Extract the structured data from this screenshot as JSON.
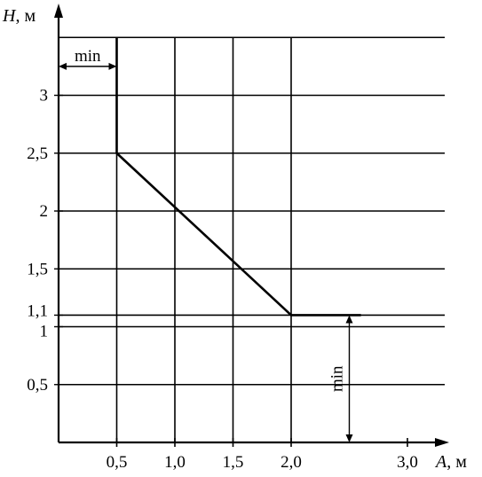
{
  "chart_data": {
    "type": "line",
    "xlabel_var": "A",
    "xlabel_unit": ", м",
    "ylabel_var": "H",
    "ylabel_unit": ", м",
    "xlim": [
      0,
      3.3
    ],
    "ylim": [
      0,
      3.5
    ],
    "x_ticks": [
      {
        "value": 0.5,
        "label": "0,5"
      },
      {
        "value": 1.0,
        "label": "1,0"
      },
      {
        "value": 1.5,
        "label": "1,5"
      },
      {
        "value": 2.0,
        "label": "2,0"
      },
      {
        "value": 3.0,
        "label": "3,0"
      }
    ],
    "y_ticks": [
      {
        "value": 0.5,
        "label": "0,5"
      },
      {
        "value": 1.0,
        "label": "1"
      },
      {
        "value": 1.1,
        "label": "1,1"
      },
      {
        "value": 1.5,
        "label": "1,5"
      },
      {
        "value": 2.0,
        "label": "2"
      },
      {
        "value": 2.5,
        "label": "2,5"
      },
      {
        "value": 3.0,
        "label": "3"
      }
    ],
    "x_gridlines": [
      0.5,
      1.0,
      1.5,
      2.0
    ],
    "y_gridlines": [
      0.5,
      1.0,
      1.1,
      1.5,
      2.0,
      2.5,
      3.0,
      3.5
    ],
    "series": [
      {
        "x": [
          0.5,
          0.5,
          2.0,
          2.6
        ],
        "y": [
          3.5,
          2.5,
          1.1,
          1.1
        ]
      }
    ],
    "annotations": [
      {
        "text": "min",
        "type": "horizontal",
        "from": [
          0,
          3.25
        ],
        "to": [
          0.5,
          3.25
        ]
      },
      {
        "text": "min",
        "type": "vertical",
        "from": [
          2.5,
          0
        ],
        "to": [
          2.5,
          1.1
        ]
      }
    ],
    "grid": true
  }
}
